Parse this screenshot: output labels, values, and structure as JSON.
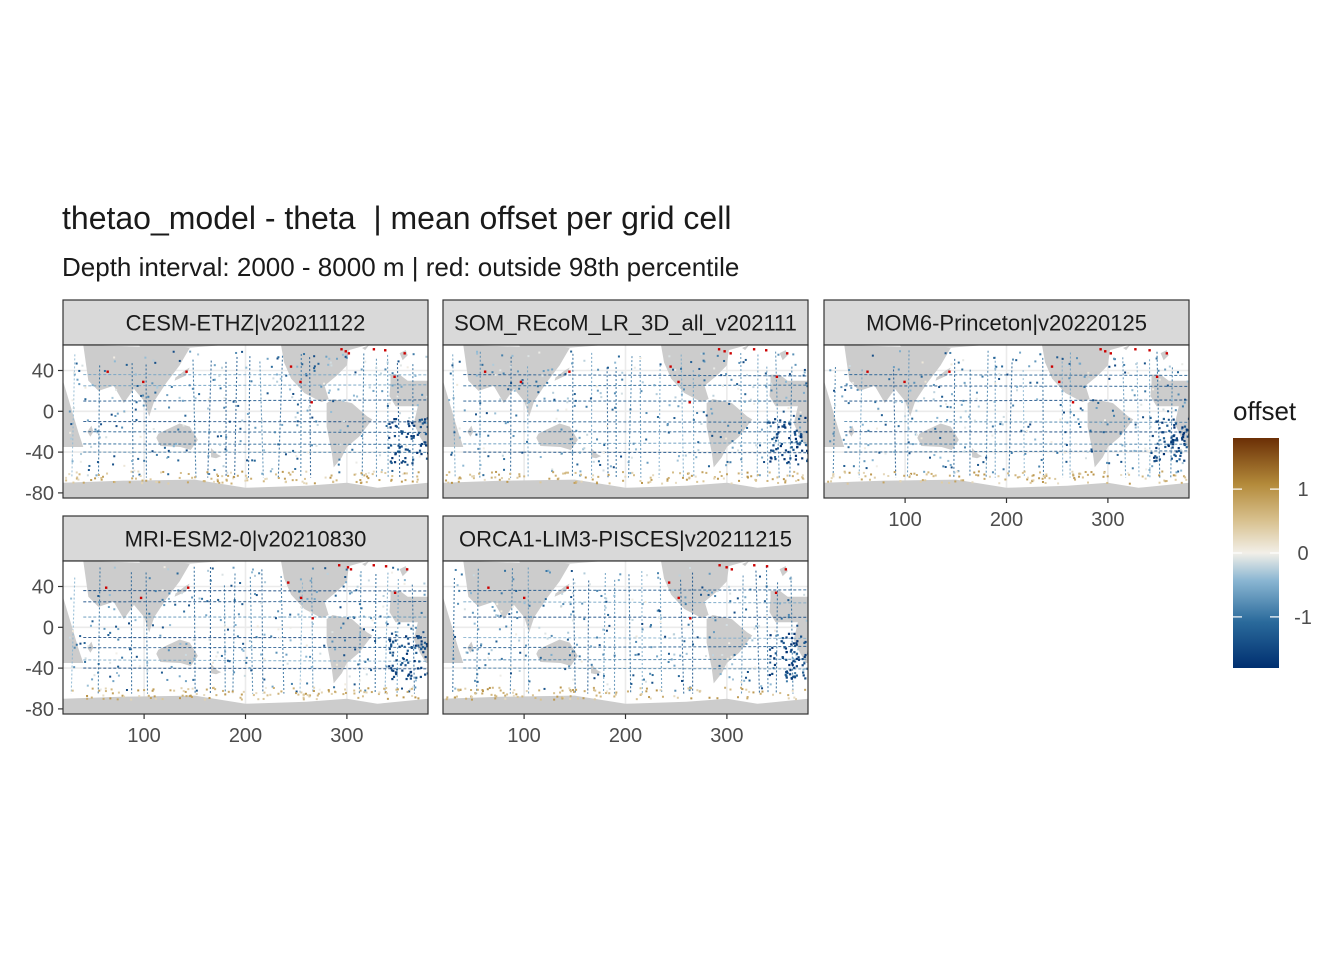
{
  "title": "thetao_model - theta  | mean offset per grid cell",
  "subtitle": "Depth interval: 2000 - 8000 m | red: outside 98th percentile",
  "chart_data": {
    "type": "heatmap",
    "title": "thetao_model - theta  | mean offset per grid cell",
    "subtitle": "Depth interval: 2000 - 8000 m | red: outside 98th percentile",
    "xlim": [
      20,
      380
    ],
    "ylim": [
      -85,
      65
    ],
    "x_ticks": [
      100,
      200,
      300
    ],
    "y_ticks": [
      40,
      0,
      -40,
      -80
    ],
    "x_tick_labels": [
      "100",
      "200",
      "300"
    ],
    "y_tick_labels": [
      "40",
      "0",
      "-40",
      "-80"
    ],
    "grid": true,
    "legend": {
      "title": "offset",
      "position": "right",
      "min": -1.8,
      "max": 1.8,
      "breaks": [
        1,
        0,
        -1
      ],
      "break_labels": [
        "1",
        "0",
        "-1"
      ],
      "colors": [
        "#002f70",
        "#2a6a9b",
        "#8ab6d2",
        "#f2efe8",
        "#d8c18f",
        "#b38a3a",
        "#6b2f06"
      ],
      "outlier_color": "#cc0000"
    },
    "panels": [
      {
        "label": "CESM-ETHZ|v20211122"
      },
      {
        "label": "SOM_REcoM_LR_3D_all_v202111"
      },
      {
        "label": "MOM6-Princeton|v20220125"
      },
      {
        "label": "MRI-ESM2-0|v20210830"
      },
      {
        "label": "ORCA1-LIM3-PISCES|v20211215"
      }
    ],
    "colors": {
      "land": "#cccccc",
      "strip_fill": "#d9d9d9",
      "panel_border": "#333333",
      "grid": "#ebebeb"
    }
  }
}
